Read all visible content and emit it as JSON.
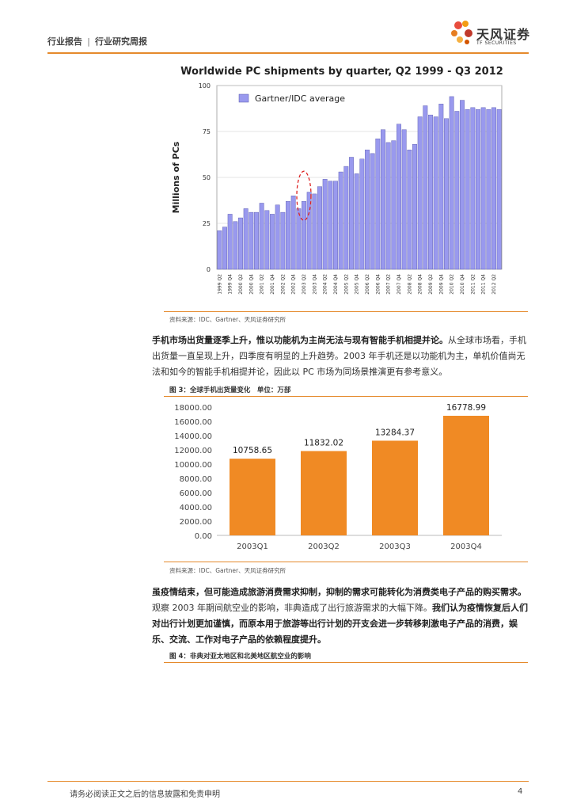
{
  "header": {
    "category": "行业报告",
    "subcategory": "行业研究周报",
    "logo_name": "天风证券",
    "logo_sub": "TF SECURITIES"
  },
  "figure_pc": {
    "source": "资料来源：IDC、Gartner、天风证券研究所"
  },
  "paragraph1": {
    "bold": "手机市场出货量逐季上升，惟以功能机为主尚无法与现有智能手机相提并论。",
    "normal": "从全球市场看，手机出货量一直呈现上升，四季度有明显的上升趋势。2003 年手机还是以功能机为主，单机价值尚无法和如今的智能手机相提并论，因此以 PC 市场为同场景推演更有参考意义。"
  },
  "figure3": {
    "title": "图 3：全球手机出货量变化　单位：万部",
    "source": "资料来源：IDC、Gartner、天风证券研究所"
  },
  "paragraph2": {
    "bold1": "虽疫情结束，但可能造成旅游消费需求抑制，抑制的需求可能转化为消费类电子产品的购买需求。",
    "normal": "观察 2003 年期间航空业的影响，非典造成了出行旅游需求的大幅下降。",
    "bold2": "我们认为疫情恢复后人们对出行计划更加谨慎，而原本用于旅游等出行计划的开支会进一步转移刺激电子产品的消费，娱乐、交流、工作对电子产品的依赖程度提升。"
  },
  "figure4": {
    "title": "图 4：非典对亚太地区和北美地区航空业的影响"
  },
  "footer": {
    "disclaimer": "请务必阅读正文之后的信息披露和免责申明",
    "page": "4"
  },
  "colors": {
    "accent": "#e58a2c",
    "pc_bar": "#9999ee",
    "phone_bar": "#f08a24"
  },
  "chart_data": [
    {
      "type": "bar",
      "title": "Worldwide PC shipments by quarter, Q2 1999 - Q3 2012",
      "ylabel": "Millions of PCs",
      "xlabel": "",
      "ylim": [
        0,
        100
      ],
      "yticks": [
        "0",
        "25",
        "50",
        "75",
        "100"
      ],
      "legend": "top-left",
      "grid": true,
      "categories": [
        "1999 Q2",
        "1999 Q3",
        "1999 Q4",
        "2000 Q1",
        "2000 Q2",
        "2000 Q3",
        "2000 Q4",
        "2001 Q1",
        "2001 Q2",
        "2001 Q3",
        "2001 Q4",
        "2002 Q1",
        "2002 Q2",
        "2002 Q3",
        "2002 Q4",
        "2003 Q1",
        "2003 Q2",
        "2003 Q3",
        "2003 Q4",
        "2004 Q1",
        "2004 Q2",
        "2004 Q3",
        "2004 Q4",
        "2005 Q1",
        "2005 Q2",
        "2005 Q3",
        "2005 Q4",
        "2006 Q1",
        "2006 Q2",
        "2006 Q3",
        "2006 Q4",
        "2007 Q1",
        "2007 Q2",
        "2007 Q3",
        "2007 Q4",
        "2008 Q1",
        "2008 Q2",
        "2008 Q3",
        "2008 Q4",
        "2009 Q1",
        "2009 Q2",
        "2009 Q3",
        "2009 Q4",
        "2010 Q1",
        "2010 Q2",
        "2010 Q3",
        "2010 Q4",
        "2011 Q1",
        "2011 Q2",
        "2011 Q3",
        "2011 Q4",
        "2012 Q1",
        "2012 Q2",
        "2012 Q3"
      ],
      "tick_labels": [
        "1999 Q2",
        "1999 Q4",
        "2000 Q2",
        "2000 Q4",
        "2001 Q2",
        "2001 Q4",
        "2002 Q2",
        "2002 Q4",
        "2003 Q2",
        "2003 Q4",
        "2004 Q2",
        "2004 Q4",
        "2005 Q2",
        "2005 Q4",
        "2006 Q2",
        "2006 Q4",
        "2007 Q2",
        "2007 Q4",
        "2008 Q2",
        "2008 Q4",
        "2009 Q2",
        "2009 Q4",
        "2010 Q2",
        "2010 Q4",
        "2011 Q2",
        "2011 Q4",
        "2012 Q2"
      ],
      "series": [
        {
          "name": "Gartner/IDC average",
          "values": [
            21,
            23,
            30,
            26,
            28,
            33,
            31,
            31,
            36,
            32,
            30,
            35,
            31,
            37,
            40,
            33,
            37,
            42,
            41,
            45,
            49,
            48,
            48,
            53,
            56,
            61,
            52,
            60,
            65,
            63,
            71,
            76,
            69,
            70,
            79,
            76,
            65,
            68,
            83,
            89,
            84,
            83,
            90,
            82,
            94,
            86,
            92,
            87,
            88,
            87,
            88,
            87,
            88,
            87
          ]
        }
      ],
      "annotation": "dashed red ellipse highlighting 2003 Q2"
    },
    {
      "type": "bar",
      "title": "",
      "xlabel": "",
      "ylabel": "",
      "ylim": [
        0,
        18000
      ],
      "yticks": [
        "0.00",
        "2000.00",
        "4000.00",
        "6000.00",
        "8000.00",
        "10000.00",
        "12000.00",
        "14000.00",
        "16000.00",
        "18000.00"
      ],
      "categories": [
        "2003Q1",
        "2003Q2",
        "2003Q3",
        "2003Q4"
      ],
      "values": [
        10758.65,
        11832.02,
        13284.37,
        16778.99
      ],
      "value_labels": [
        "10758.65",
        "11832.02",
        "13284.37",
        "16778.99"
      ]
    }
  ]
}
